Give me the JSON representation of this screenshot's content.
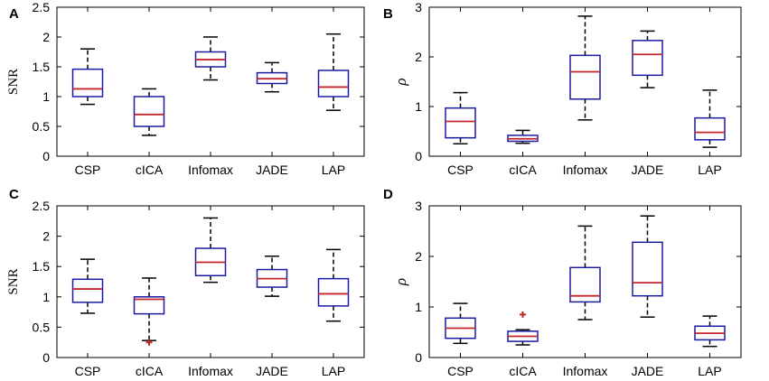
{
  "chart_data": [
    {
      "panel": "A",
      "type": "box",
      "ylabel": "SNR",
      "categories": [
        "CSP",
        "cICA",
        "Infomax",
        "JADE",
        "LAP"
      ],
      "ylim": [
        0,
        2.5
      ],
      "yticks": [
        "0",
        "0.5",
        "1",
        "1.5",
        "2",
        "2.5"
      ],
      "boxes": [
        {
          "whisker_low": 0.87,
          "q1": 1.0,
          "median": 1.13,
          "q3": 1.46,
          "whisker_high": 1.8
        },
        {
          "whisker_low": 0.35,
          "q1": 0.5,
          "median": 0.7,
          "q3": 1.0,
          "whisker_high": 1.13
        },
        {
          "whisker_low": 1.28,
          "q1": 1.5,
          "median": 1.62,
          "q3": 1.75,
          "whisker_high": 2.0
        },
        {
          "whisker_low": 1.08,
          "q1": 1.22,
          "median": 1.3,
          "q3": 1.4,
          "whisker_high": 1.57
        },
        {
          "whisker_low": 0.77,
          "q1": 1.0,
          "median": 1.16,
          "q3": 1.44,
          "whisker_high": 2.05
        }
      ],
      "outliers": [
        [],
        [],
        [],
        [],
        []
      ]
    },
    {
      "panel": "B",
      "type": "box",
      "ylabel": "ρ",
      "categories": [
        "CSP",
        "cICA",
        "Infomax",
        "JADE",
        "LAP"
      ],
      "ylim": [
        0,
        3
      ],
      "yticks": [
        "0",
        "1",
        "2",
        "3"
      ],
      "boxes": [
        {
          "whisker_low": 0.25,
          "q1": 0.37,
          "median": 0.7,
          "q3": 0.97,
          "whisker_high": 1.28
        },
        {
          "whisker_low": 0.26,
          "q1": 0.3,
          "median": 0.35,
          "q3": 0.42,
          "whisker_high": 0.52
        },
        {
          "whisker_low": 0.73,
          "q1": 1.15,
          "median": 1.7,
          "q3": 2.03,
          "whisker_high": 2.82
        },
        {
          "whisker_low": 1.38,
          "q1": 1.63,
          "median": 2.05,
          "q3": 2.33,
          "whisker_high": 2.52
        },
        {
          "whisker_low": 0.18,
          "q1": 0.33,
          "median": 0.48,
          "q3": 0.77,
          "whisker_high": 1.33
        }
      ],
      "outliers": [
        [],
        [],
        [],
        [],
        []
      ]
    },
    {
      "panel": "C",
      "type": "box",
      "ylabel": "SNR",
      "categories": [
        "CSP",
        "cICA",
        "Infomax",
        "JADE",
        "LAP"
      ],
      "ylim": [
        0,
        2.5
      ],
      "yticks": [
        "0",
        "0.5",
        "1",
        "1.5",
        "2",
        "2.5"
      ],
      "boxes": [
        {
          "whisker_low": 0.73,
          "q1": 0.91,
          "median": 1.13,
          "q3": 1.29,
          "whisker_high": 1.62
        },
        {
          "whisker_low": 0.28,
          "q1": 0.72,
          "median": 0.96,
          "q3": 1.0,
          "whisker_high": 1.31
        },
        {
          "whisker_low": 1.24,
          "q1": 1.35,
          "median": 1.57,
          "q3": 1.8,
          "whisker_high": 2.3
        },
        {
          "whisker_low": 1.01,
          "q1": 1.16,
          "median": 1.3,
          "q3": 1.45,
          "whisker_high": 1.67
        },
        {
          "whisker_low": 0.6,
          "q1": 0.85,
          "median": 1.05,
          "q3": 1.3,
          "whisker_high": 1.78
        }
      ],
      "outliers": [
        [],
        [
          0.25
        ],
        [],
        [],
        []
      ]
    },
    {
      "panel": "D",
      "type": "box",
      "ylabel": "ρ",
      "categories": [
        "CSP",
        "cICA",
        "Infomax",
        "JADE",
        "LAP"
      ],
      "ylim": [
        0,
        3
      ],
      "yticks": [
        "0",
        "1",
        "2",
        "3"
      ],
      "boxes": [
        {
          "whisker_low": 0.28,
          "q1": 0.38,
          "median": 0.58,
          "q3": 0.78,
          "whisker_high": 1.07
        },
        {
          "whisker_low": 0.25,
          "q1": 0.32,
          "median": 0.42,
          "q3": 0.52,
          "whisker_high": 0.55
        },
        {
          "whisker_low": 0.75,
          "q1": 1.1,
          "median": 1.22,
          "q3": 1.78,
          "whisker_high": 2.6
        },
        {
          "whisker_low": 0.8,
          "q1": 1.22,
          "median": 1.48,
          "q3": 2.28,
          "whisker_high": 2.8
        },
        {
          "whisker_low": 0.22,
          "q1": 0.35,
          "median": 0.48,
          "q3": 0.62,
          "whisker_high": 0.82
        }
      ],
      "outliers": [
        [],
        [
          0.85
        ],
        [],
        [],
        []
      ]
    }
  ],
  "colors": {
    "box": "#1a1aa0",
    "median": "#c0262c",
    "whisker": "#000000",
    "outlier": "#c0262c",
    "axes": "#000000"
  }
}
